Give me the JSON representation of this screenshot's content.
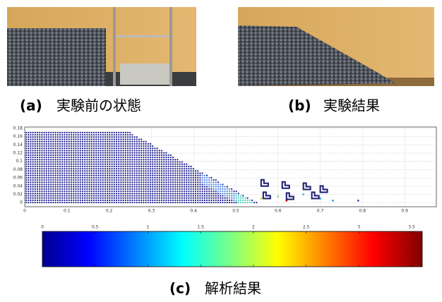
{
  "panels": [
    {
      "label": "(a)",
      "caption": "実験前の状態"
    },
    {
      "label": "(b)",
      "caption": "実験結果"
    },
    {
      "label": "(c)",
      "caption": "解析結果"
    }
  ],
  "plot": {
    "xlim": [
      0,
      0.975
    ],
    "xticks": [
      0,
      0.1,
      0.2,
      0.3,
      0.4,
      0.5,
      0.6,
      0.7,
      0.8,
      0.9
    ],
    "ylim": [
      -0.01,
      0.18
    ],
    "yticks": [
      0,
      0.02,
      0.04,
      0.06,
      0.08,
      0.1,
      0.12,
      0.14,
      0.16,
      0.18
    ]
  },
  "colorbar": {
    "lim": [
      0,
      3.6
    ],
    "ticks": [
      0,
      0.5,
      1,
      1.5,
      2,
      2.5,
      3,
      3.5
    ]
  }
}
